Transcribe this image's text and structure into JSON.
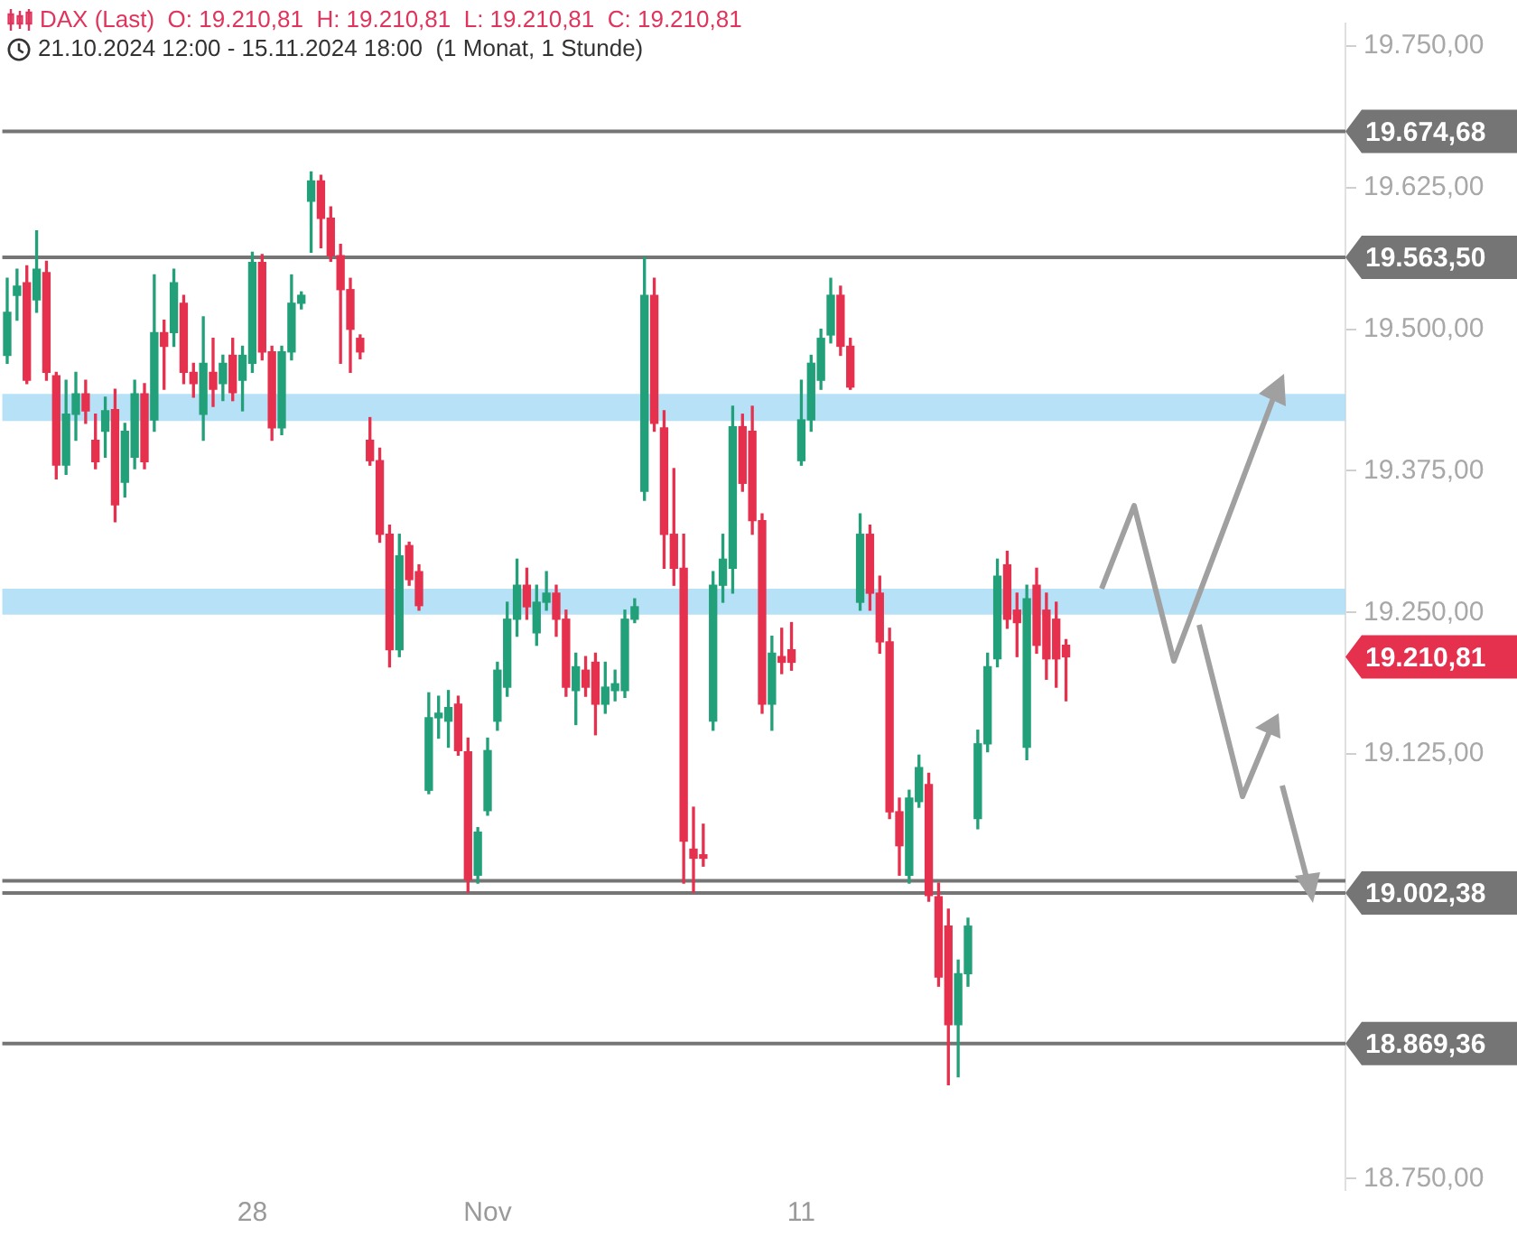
{
  "chart_data": {
    "type": "candlestick",
    "title": "DAX (Last)  O: 19.210,81  H: 19.210,81  L: 19.210,81  C: 19.210,81",
    "subtitle": "21.10.2024 12:00 - 15.11.2024 18:00  (1 Monat, 1 Stunde)",
    "categories": [
      null,
      null,
      null,
      null,
      null,
      null,
      null,
      null,
      null,
      null,
      null,
      null,
      null,
      null,
      null,
      null,
      null,
      null,
      null,
      null,
      null,
      null,
      null,
      null,
      null,
      "28",
      null,
      null,
      null,
      null,
      null,
      null,
      null,
      null,
      null,
      null,
      null,
      null,
      null,
      null,
      null,
      null,
      null,
      null,
      null,
      null,
      null,
      null,
      null,
      "Nov",
      null,
      null,
      null,
      null,
      null,
      null,
      null,
      null,
      null,
      null,
      null,
      null,
      null,
      null,
      null,
      null,
      null,
      null,
      null,
      null,
      null,
      null,
      null,
      null,
      null,
      null,
      null,
      null,
      null,
      null,
      null,
      "11",
      null,
      null,
      null,
      null,
      null,
      null,
      null,
      null,
      null,
      null,
      null,
      null,
      null,
      null,
      null,
      null,
      null,
      null,
      null,
      null,
      null,
      null,
      null,
      null,
      null,
      null,
      null,
      null,
      null,
      null,
      null,
      null,
      null,
      null,
      null,
      null,
      null,
      null,
      null,
      null,
      null,
      null,
      null,
      null,
      null,
      null,
      null,
      null,
      null,
      null,
      null,
      null,
      null,
      null,
      null
    ],
    "ohlc": [
      [
        19477,
        19545,
        19470,
        19515
      ],
      [
        19530,
        19553,
        19508,
        19538
      ],
      [
        19541,
        19556,
        19452,
        19455
      ],
      [
        19526,
        19587,
        19515,
        19553
      ],
      [
        19550,
        19560,
        19455,
        19462
      ],
      [
        19459,
        19462,
        19368,
        19380
      ],
      [
        19380,
        19455,
        19372,
        19425
      ],
      [
        19425,
        19462,
        19402,
        19443
      ],
      [
        19443,
        19455,
        19417,
        19428
      ],
      [
        19402,
        19425,
        19377,
        19383
      ],
      [
        19410,
        19440,
        19387,
        19428
      ],
      [
        19429,
        19447,
        19330,
        19345
      ],
      [
        19365,
        19417,
        19352,
        19410
      ],
      [
        19387,
        19455,
        19377,
        19443
      ],
      [
        19443,
        19452,
        19377,
        19383
      ],
      [
        19420,
        19548,
        19410,
        19497
      ],
      [
        19497,
        19508,
        19447,
        19485
      ],
      [
        19497,
        19553,
        19485,
        19541
      ],
      [
        19523,
        19530,
        19452,
        19462
      ],
      [
        19462,
        19470,
        19440,
        19452
      ],
      [
        19425,
        19511,
        19402,
        19470
      ],
      [
        19462,
        19492,
        19432,
        19447
      ],
      [
        19452,
        19477,
        19437,
        19470
      ],
      [
        19477,
        19492,
        19437,
        19444
      ],
      [
        19455,
        19485,
        19428,
        19477
      ],
      [
        19470,
        19568,
        19462,
        19559
      ],
      [
        19559,
        19566,
        19473,
        19480
      ],
      [
        19480,
        19485,
        19402,
        19413
      ],
      [
        19413,
        19485,
        19407,
        19480
      ],
      [
        19480,
        19548,
        19473,
        19523
      ],
      [
        19523,
        19533,
        19518,
        19530
      ],
      [
        19613,
        19639,
        19568,
        19631
      ],
      [
        19631,
        19636,
        19572,
        19598
      ],
      [
        19598,
        19608,
        19560,
        19565
      ],
      [
        19565,
        19575,
        19470,
        19535
      ],
      [
        19535,
        19545,
        19462,
        19500
      ],
      [
        19492,
        19495,
        19474,
        19480
      ],
      [
        19402,
        19422,
        19380,
        19384
      ],
      [
        19384,
        19395,
        19312,
        19319
      ],
      [
        19319,
        19327,
        19202,
        19217
      ],
      [
        19217,
        19319,
        19211,
        19300
      ],
      [
        19309,
        19312,
        19274,
        19279
      ],
      [
        19286,
        19292,
        19252,
        19256
      ],
      [
        19093,
        19179,
        19090,
        19157
      ],
      [
        19157,
        19176,
        19139,
        19161
      ],
      [
        19154,
        19181,
        19131,
        19166
      ],
      [
        19169,
        19176,
        19124,
        19128
      ],
      [
        19127,
        19139,
        19003,
        19014
      ],
      [
        19018,
        19060,
        19011,
        19056
      ],
      [
        19075,
        19139,
        19071,
        19128
      ],
      [
        19154,
        19206,
        19146,
        19199
      ],
      [
        19184,
        19259,
        19176,
        19244
      ],
      [
        19244,
        19297,
        19229,
        19274
      ],
      [
        19274,
        19289,
        19244,
        19255
      ],
      [
        19232,
        19274,
        19221,
        19259
      ],
      [
        19259,
        19286,
        19252,
        19267
      ],
      [
        19267,
        19274,
        19229,
        19244
      ],
      [
        19244,
        19252,
        19176,
        19184
      ],
      [
        19181,
        19214,
        19151,
        19202
      ],
      [
        19199,
        19211,
        19176,
        19184
      ],
      [
        19206,
        19214,
        19142,
        19169
      ],
      [
        19169,
        19206,
        19161,
        19184
      ],
      [
        19181,
        19199,
        19172,
        19187
      ],
      [
        19181,
        19252,
        19175,
        19244
      ],
      [
        19244,
        19262,
        19241,
        19255
      ],
      [
        19357,
        19563.5,
        19349,
        19530
      ],
      [
        19530,
        19545,
        19410,
        19417
      ],
      [
        19413,
        19428,
        19289,
        19319
      ],
      [
        19319,
        19377,
        19274,
        19289
      ],
      [
        19289,
        19319,
        19011,
        19048
      ],
      [
        19041,
        19078,
        19003,
        19033
      ],
      [
        19036,
        19063,
        19026,
        19033
      ],
      [
        19154,
        19286,
        19146,
        19274
      ],
      [
        19274,
        19319,
        19259,
        19297
      ],
      [
        19289,
        19432,
        19267,
        19414
      ],
      [
        19414,
        19425,
        19357,
        19364
      ],
      [
        19410,
        19432,
        19319,
        19331
      ],
      [
        19331,
        19337,
        19161,
        19169
      ],
      [
        19169,
        19229,
        19146,
        19214
      ],
      [
        19211,
        19236,
        19196,
        19206
      ],
      [
        19217,
        19241,
        19199,
        19206
      ],
      [
        19384,
        19455,
        19380,
        19420
      ],
      [
        19420,
        19477,
        19410,
        19470
      ],
      [
        19455,
        19500,
        19447,
        19492
      ],
      [
        19495,
        19545,
        19488,
        19530
      ],
      [
        19530,
        19538,
        19477,
        19485
      ],
      [
        19485,
        19492,
        19447,
        19449
      ],
      [
        19259,
        19337,
        19252,
        19319
      ],
      [
        19319,
        19327,
        19252,
        19267
      ],
      [
        19267,
        19282,
        19214,
        19224
      ],
      [
        19224,
        19236,
        19068,
        19074
      ],
      [
        19074,
        19086,
        19018,
        19044
      ],
      [
        19018,
        19093,
        19011,
        19086
      ],
      [
        19083,
        19124,
        19078,
        19113
      ],
      [
        19098,
        19108,
        18995,
        19000
      ],
      [
        18999,
        19011,
        18920,
        18928
      ],
      [
        18973,
        18988,
        18833,
        18886
      ],
      [
        18886,
        18943,
        18840,
        18931
      ],
      [
        18931,
        18980,
        18920,
        18973
      ],
      [
        19068,
        19146,
        19059,
        19134
      ],
      [
        19134,
        19214,
        19127,
        19202
      ],
      [
        19209,
        19297,
        19202,
        19282
      ],
      [
        19292,
        19304,
        19236,
        19244
      ],
      [
        19252,
        19267,
        19211,
        19241
      ],
      [
        19131,
        19274,
        19120,
        19262
      ],
      [
        19274,
        19289,
        19214,
        19221
      ],
      [
        19252,
        19267,
        19191,
        19209
      ],
      [
        19244,
        19259,
        19184,
        19209
      ],
      [
        19221,
        19226,
        19172,
        19210.81
      ],
      null,
      null,
      null,
      null,
      null,
      null,
      null,
      null,
      null,
      null,
      null,
      null,
      null,
      null,
      null,
      null,
      null,
      null,
      null,
      null,
      null,
      null,
      null,
      null,
      null,
      null,
      null,
      null
    ],
    "colors": [
      "#22a079",
      "#22a079",
      "#e5304e",
      "#22a079",
      "#e5304e",
      "#e5304e",
      "#22a079",
      "#22a079",
      "#e5304e",
      "#e5304e",
      "#22a079",
      "#e5304e",
      "#22a079",
      "#22a079",
      "#e5304e",
      "#22a079",
      "#e5304e",
      "#22a079",
      "#e5304e",
      "#e5304e",
      "#22a079",
      "#e5304e",
      "#22a079",
      "#e5304e",
      "#22a079",
      "#22a079",
      "#e5304e",
      "#e5304e",
      "#22a079",
      "#22a079",
      "#22a079",
      "#22a079",
      "#e5304e",
      "#e5304e",
      "#e5304e",
      "#e5304e",
      "#e5304e",
      "#e5304e",
      "#e5304e",
      "#e5304e",
      "#22a079",
      "#e5304e",
      "#e5304e",
      "#22a079",
      "#22a079",
      "#22a079",
      "#e5304e",
      "#e5304e",
      "#22a079",
      "#22a079",
      "#22a079",
      "#22a079",
      "#22a079",
      "#e5304e",
      "#22a079",
      "#22a079",
      "#e5304e",
      "#e5304e",
      "#22a079",
      "#e5304e",
      "#e5304e",
      "#22a079",
      "#22a079",
      "#22a079",
      "#22a079",
      "#22a079",
      "#e5304e",
      "#e5304e",
      "#e5304e",
      "#e5304e",
      "#e5304e",
      "#e5304e",
      "#22a079",
      "#22a079",
      "#22a079",
      "#e5304e",
      "#e5304e",
      "#e5304e",
      "#22a079",
      "#e5304e",
      "#e5304e",
      "#22a079",
      "#22a079",
      "#22a079",
      "#22a079",
      "#e5304e",
      "#e5304e",
      "#22a079",
      "#e5304e",
      "#e5304e",
      "#e5304e",
      "#e5304e",
      "#22a079",
      "#22a079",
      "#e5304e",
      "#e5304e",
      "#e5304e",
      "#22a079",
      "#22a079",
      "#22a079",
      "#22a079",
      "#22a079",
      "#e5304e",
      "#e5304e",
      "#22a079",
      "#e5304e",
      "#e5304e",
      "#e5304e",
      "#e5304e",
      null,
      null,
      null,
      null,
      null,
      null,
      null,
      null,
      null,
      null,
      null,
      null,
      null,
      null,
      null,
      null,
      null,
      null,
      null,
      null,
      null,
      null,
      null,
      null,
      null,
      null,
      null,
      null
    ],
    "ylim": [
      18740,
      19770
    ],
    "yticks": [
      {
        "value": 18750,
        "label": "18.750,00"
      },
      {
        "value": 19125,
        "label": "19.125,00"
      },
      {
        "value": 19250,
        "label": "19.250,00"
      },
      {
        "value": 19375,
        "label": "19.375,00"
      },
      {
        "value": 19500,
        "label": "19.500,00"
      },
      {
        "value": 19625,
        "label": "19.625,00"
      },
      {
        "value": 19750,
        "label": "19.750,00"
      }
    ],
    "ref_lines": [
      {
        "axis": "y",
        "value": 19674.68,
        "label": "19.674,68",
        "color": "#757575"
      },
      {
        "axis": "y",
        "value": 19563.5,
        "label": "19.563,50",
        "color": "#757575"
      },
      {
        "axis": "y",
        "value": 19013,
        "label": null,
        "color": "#757575"
      },
      {
        "axis": "y",
        "value": 19002.38,
        "label": "19.002,38",
        "color": "#757575"
      },
      {
        "axis": "y",
        "value": 18869.36,
        "label": "18.869,36",
        "color": "#757575"
      }
    ],
    "bands": [
      {
        "axis": "y",
        "from": 19419,
        "to": 19443,
        "color": "#a9dcf6"
      },
      {
        "axis": "y",
        "from": 19248,
        "to": 19271,
        "color": "#a9dcf6"
      }
    ],
    "annotations": [
      "19.210,81"
    ]
  }
}
